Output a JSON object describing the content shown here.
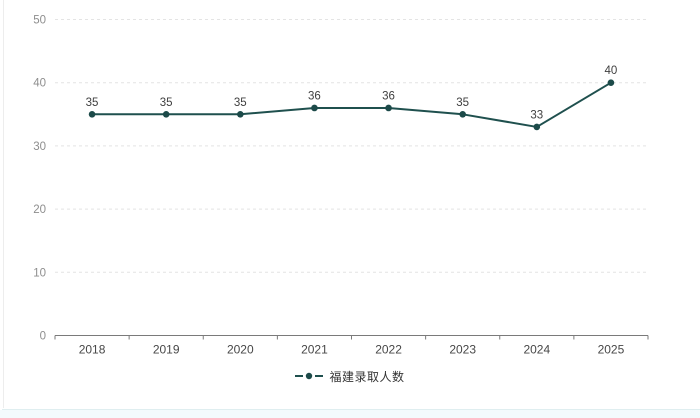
{
  "chart_data": {
    "type": "line",
    "title": "",
    "categories": [
      "2018",
      "2019",
      "2020",
      "2021",
      "2022",
      "2023",
      "2024",
      "2025"
    ],
    "series": [
      {
        "name": "福建录取人数",
        "values": [
          35,
          35,
          35,
          36,
          36,
          35,
          33,
          40
        ]
      }
    ],
    "xlabel": "",
    "ylabel": "",
    "ylim": [
      0,
      50
    ],
    "yticks": [
      0,
      10,
      20,
      30,
      40,
      50
    ],
    "grid": "horizontal-dashed",
    "data_labels": true,
    "legend_position": "bottom"
  },
  "legend": {
    "label": "福建录取人数"
  },
  "colors": {
    "line": "#1f504e",
    "marker": "#1c4a49",
    "axis_line": "#7a7a7a",
    "gridline": "#e4e4e4",
    "y_tick_label": "#8e8e8e",
    "x_tick_label": "#474747",
    "data_label": "#3f3f3f",
    "card_border": "#ededed",
    "bottom_strip": "#f3fafc"
  }
}
